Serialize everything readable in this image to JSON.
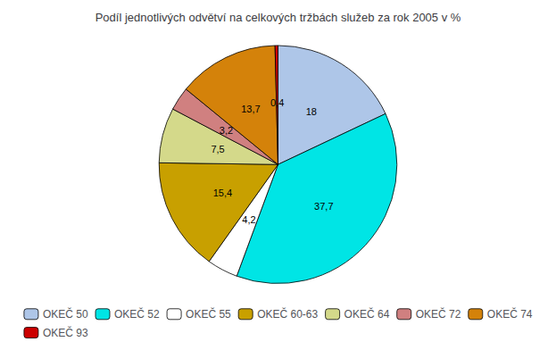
{
  "chart_data": {
    "type": "pie",
    "title": "Podíl jednotlivých odvětví na celkových tržbách služeb za rok 2005 v %",
    "categories": [
      "OKEČ 50",
      "OKEČ 52",
      "OKEČ 55",
      "OKEČ 60-63",
      "OKEČ 64",
      "OKEČ 72",
      "OKEČ 74",
      "OKEČ 93"
    ],
    "values": [
      18,
      37.7,
      4.2,
      15.4,
      7.5,
      3.2,
      13.7,
      0.4
    ],
    "value_labels": [
      "18",
      "37,7",
      "4,2",
      "15,4",
      "7,5",
      "3,2",
      "13,7",
      "0,4"
    ],
    "colors": [
      "#aec6e8",
      "#00e5e5",
      "#ffffff",
      "#c8a000",
      "#d4d98a",
      "#d08080",
      "#d4820a",
      "#cc0000"
    ],
    "data_labels": true,
    "legend": "bottom"
  }
}
